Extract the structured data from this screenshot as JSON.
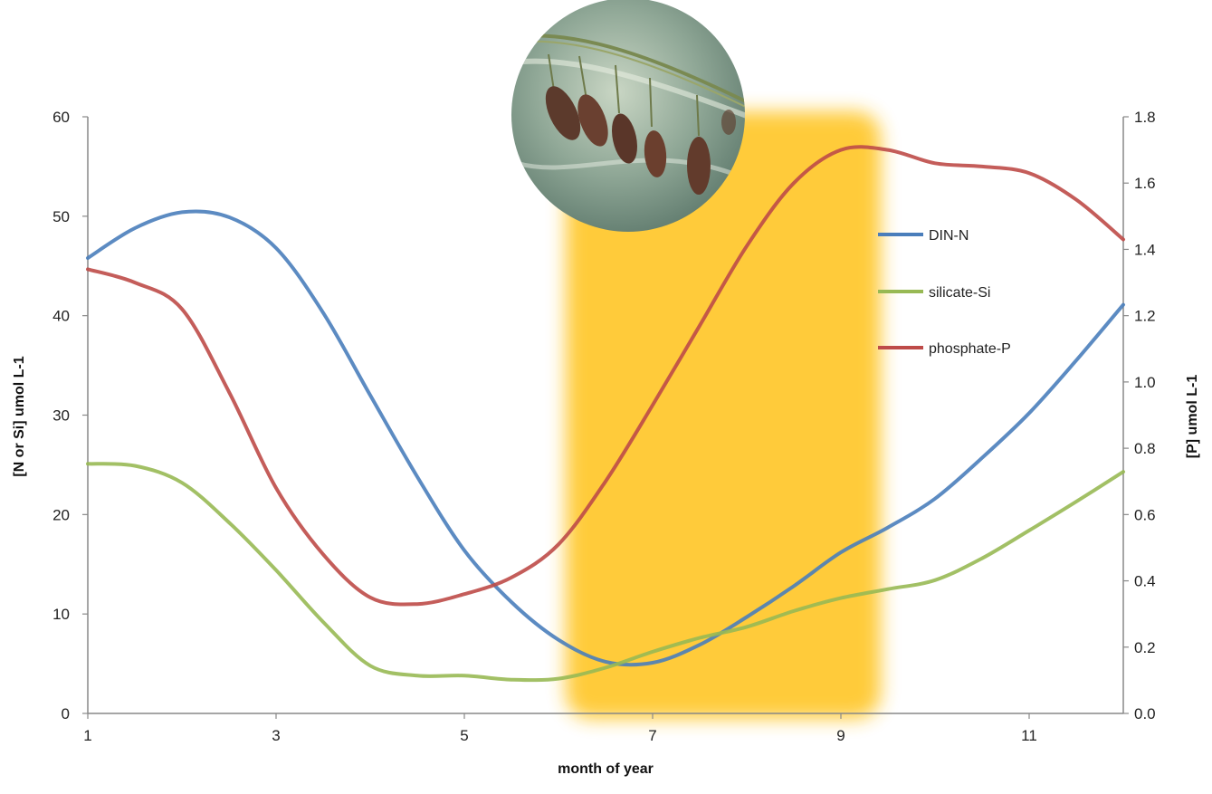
{
  "chart_data": {
    "type": "line",
    "title": "",
    "xlabel": "month of year",
    "ylabel_left": "[N or Si] umol L-1",
    "ylabel_right": "[P] umol L-1",
    "xlim": [
      1,
      12
    ],
    "ylim_left": [
      0,
      60
    ],
    "ylim_right": [
      0,
      1.8
    ],
    "x_ticks": [
      "1",
      "3",
      "5",
      "7",
      "9",
      "11"
    ],
    "y_left_ticks": [
      "0",
      "10",
      "20",
      "30",
      "40",
      "50",
      "60"
    ],
    "y_right_ticks": [
      "0.0",
      "0.2",
      "0.4",
      "0.6",
      "0.8",
      "1.0",
      "1.2",
      "1.4",
      "1.6",
      "1.8"
    ],
    "grid": false,
    "legend_position": "right",
    "highlight_band": {
      "x_range": [
        6,
        9.5
      ],
      "color": "#FFC72C"
    },
    "photo_inset": {
      "subject": "sea cucumbers on a rope in sea water",
      "position": "top-center"
    },
    "series": [
      {
        "name": "DIN-N",
        "axis": "left",
        "color": "#4A7EBB",
        "x": [
          1,
          1.5,
          2,
          2.5,
          3,
          3.5,
          4,
          4.5,
          5,
          5.5,
          6,
          6.5,
          7,
          7.5,
          8,
          8.5,
          9,
          9.5,
          10,
          10.5,
          11,
          11.5,
          12
        ],
        "values": [
          45.8,
          48.8,
          50.4,
          49.9,
          46.8,
          40.3,
          32.0,
          23.8,
          16.4,
          11.2,
          7.4,
          5.2,
          5.1,
          6.9,
          9.7,
          12.8,
          16.2,
          18.7,
          21.6,
          25.7,
          30.2,
          35.5,
          41.1
        ]
      },
      {
        "name": "silicate-Si",
        "axis": "left",
        "color": "#98B954",
        "x": [
          1,
          1.5,
          2,
          2.5,
          3,
          3.5,
          4,
          4.5,
          5,
          5.5,
          6,
          6.5,
          7,
          7.5,
          8,
          8.5,
          9,
          9.5,
          10,
          10.5,
          11,
          11.5,
          12
        ],
        "values": [
          25.1,
          24.9,
          23.2,
          19.2,
          14.4,
          9.2,
          4.8,
          3.8,
          3.8,
          3.4,
          3.5,
          4.6,
          6.2,
          7.6,
          8.7,
          10.3,
          11.6,
          12.5,
          13.4,
          15.6,
          18.4,
          21.3,
          24.3
        ]
      },
      {
        "name": "phosphate-P",
        "axis": "right",
        "color": "#BE4B48",
        "x": [
          1,
          1.5,
          2,
          2.5,
          3,
          3.5,
          4,
          4.5,
          5,
          5.5,
          6,
          6.5,
          7,
          7.5,
          8,
          8.5,
          9,
          9.5,
          10,
          10.5,
          11,
          11.5,
          12
        ],
        "values": [
          1.34,
          1.3,
          1.22,
          0.97,
          0.68,
          0.48,
          0.35,
          0.33,
          0.36,
          0.41,
          0.51,
          0.7,
          0.93,
          1.17,
          1.41,
          1.6,
          1.7,
          1.7,
          1.66,
          1.65,
          1.63,
          1.55,
          1.43
        ]
      }
    ]
  }
}
